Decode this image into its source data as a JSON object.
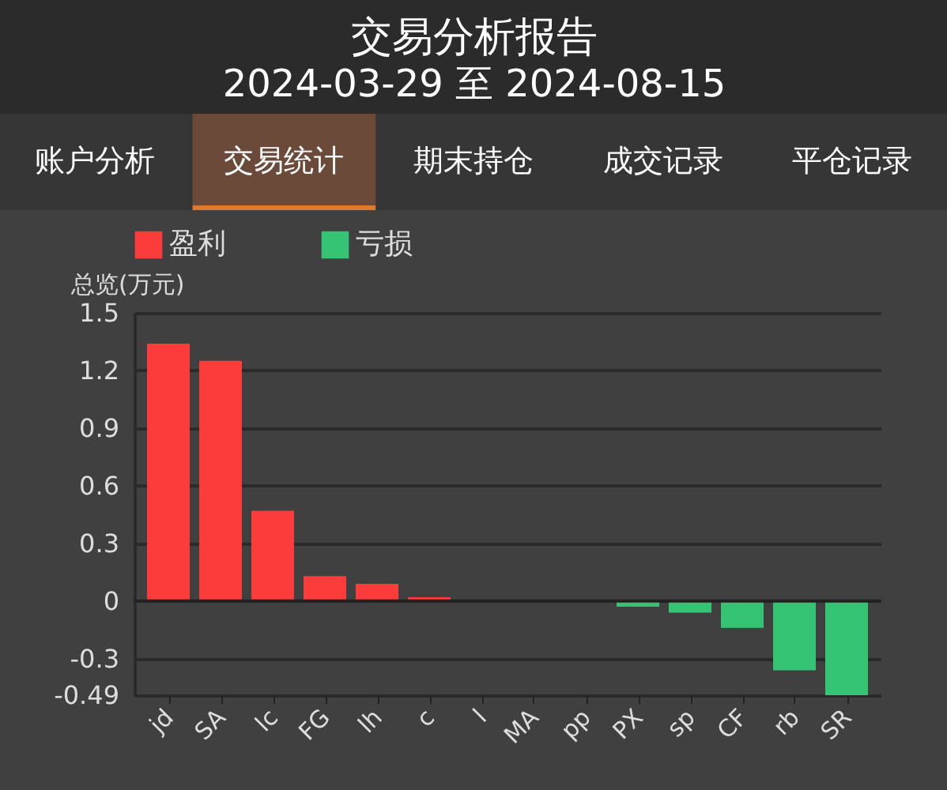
{
  "chart_data": {
    "type": "bar",
    "title": "交易分析报告",
    "subtitle": "2024-03-29 至 2024-08-15",
    "annotations": [
      "账户分析",
      "交易统计",
      "期末持仓",
      "成交记录",
      "平仓记录"
    ],
    "ylabel": "总览(万元)",
    "categories": [
      "jd",
      "SA",
      "lc",
      "FG",
      "lh",
      "c",
      "l",
      "MA",
      "pp",
      "PX",
      "sp",
      "CF",
      "rb",
      "SR"
    ],
    "series": [
      {
        "name": "盈利",
        "color": "#fc3b3b",
        "values": [
          1.34,
          1.25,
          0.47,
          0.13,
          0.09,
          0.02,
          0,
          0,
          0,
          null,
          null,
          null,
          null,
          null
        ]
      },
      {
        "name": "亏损",
        "color": "#35c474",
        "values": [
          null,
          null,
          null,
          null,
          null,
          null,
          null,
          null,
          null,
          -0.03,
          -0.06,
          -0.14,
          -0.36,
          -0.49
        ]
      }
    ],
    "ylim": [
      -0.49,
      1.5
    ],
    "yticks": [
      -0.49,
      -0.3,
      0,
      0.3,
      0.6,
      0.9,
      1.2,
      1.5
    ],
    "grid": "y",
    "legend": "top left"
  }
}
